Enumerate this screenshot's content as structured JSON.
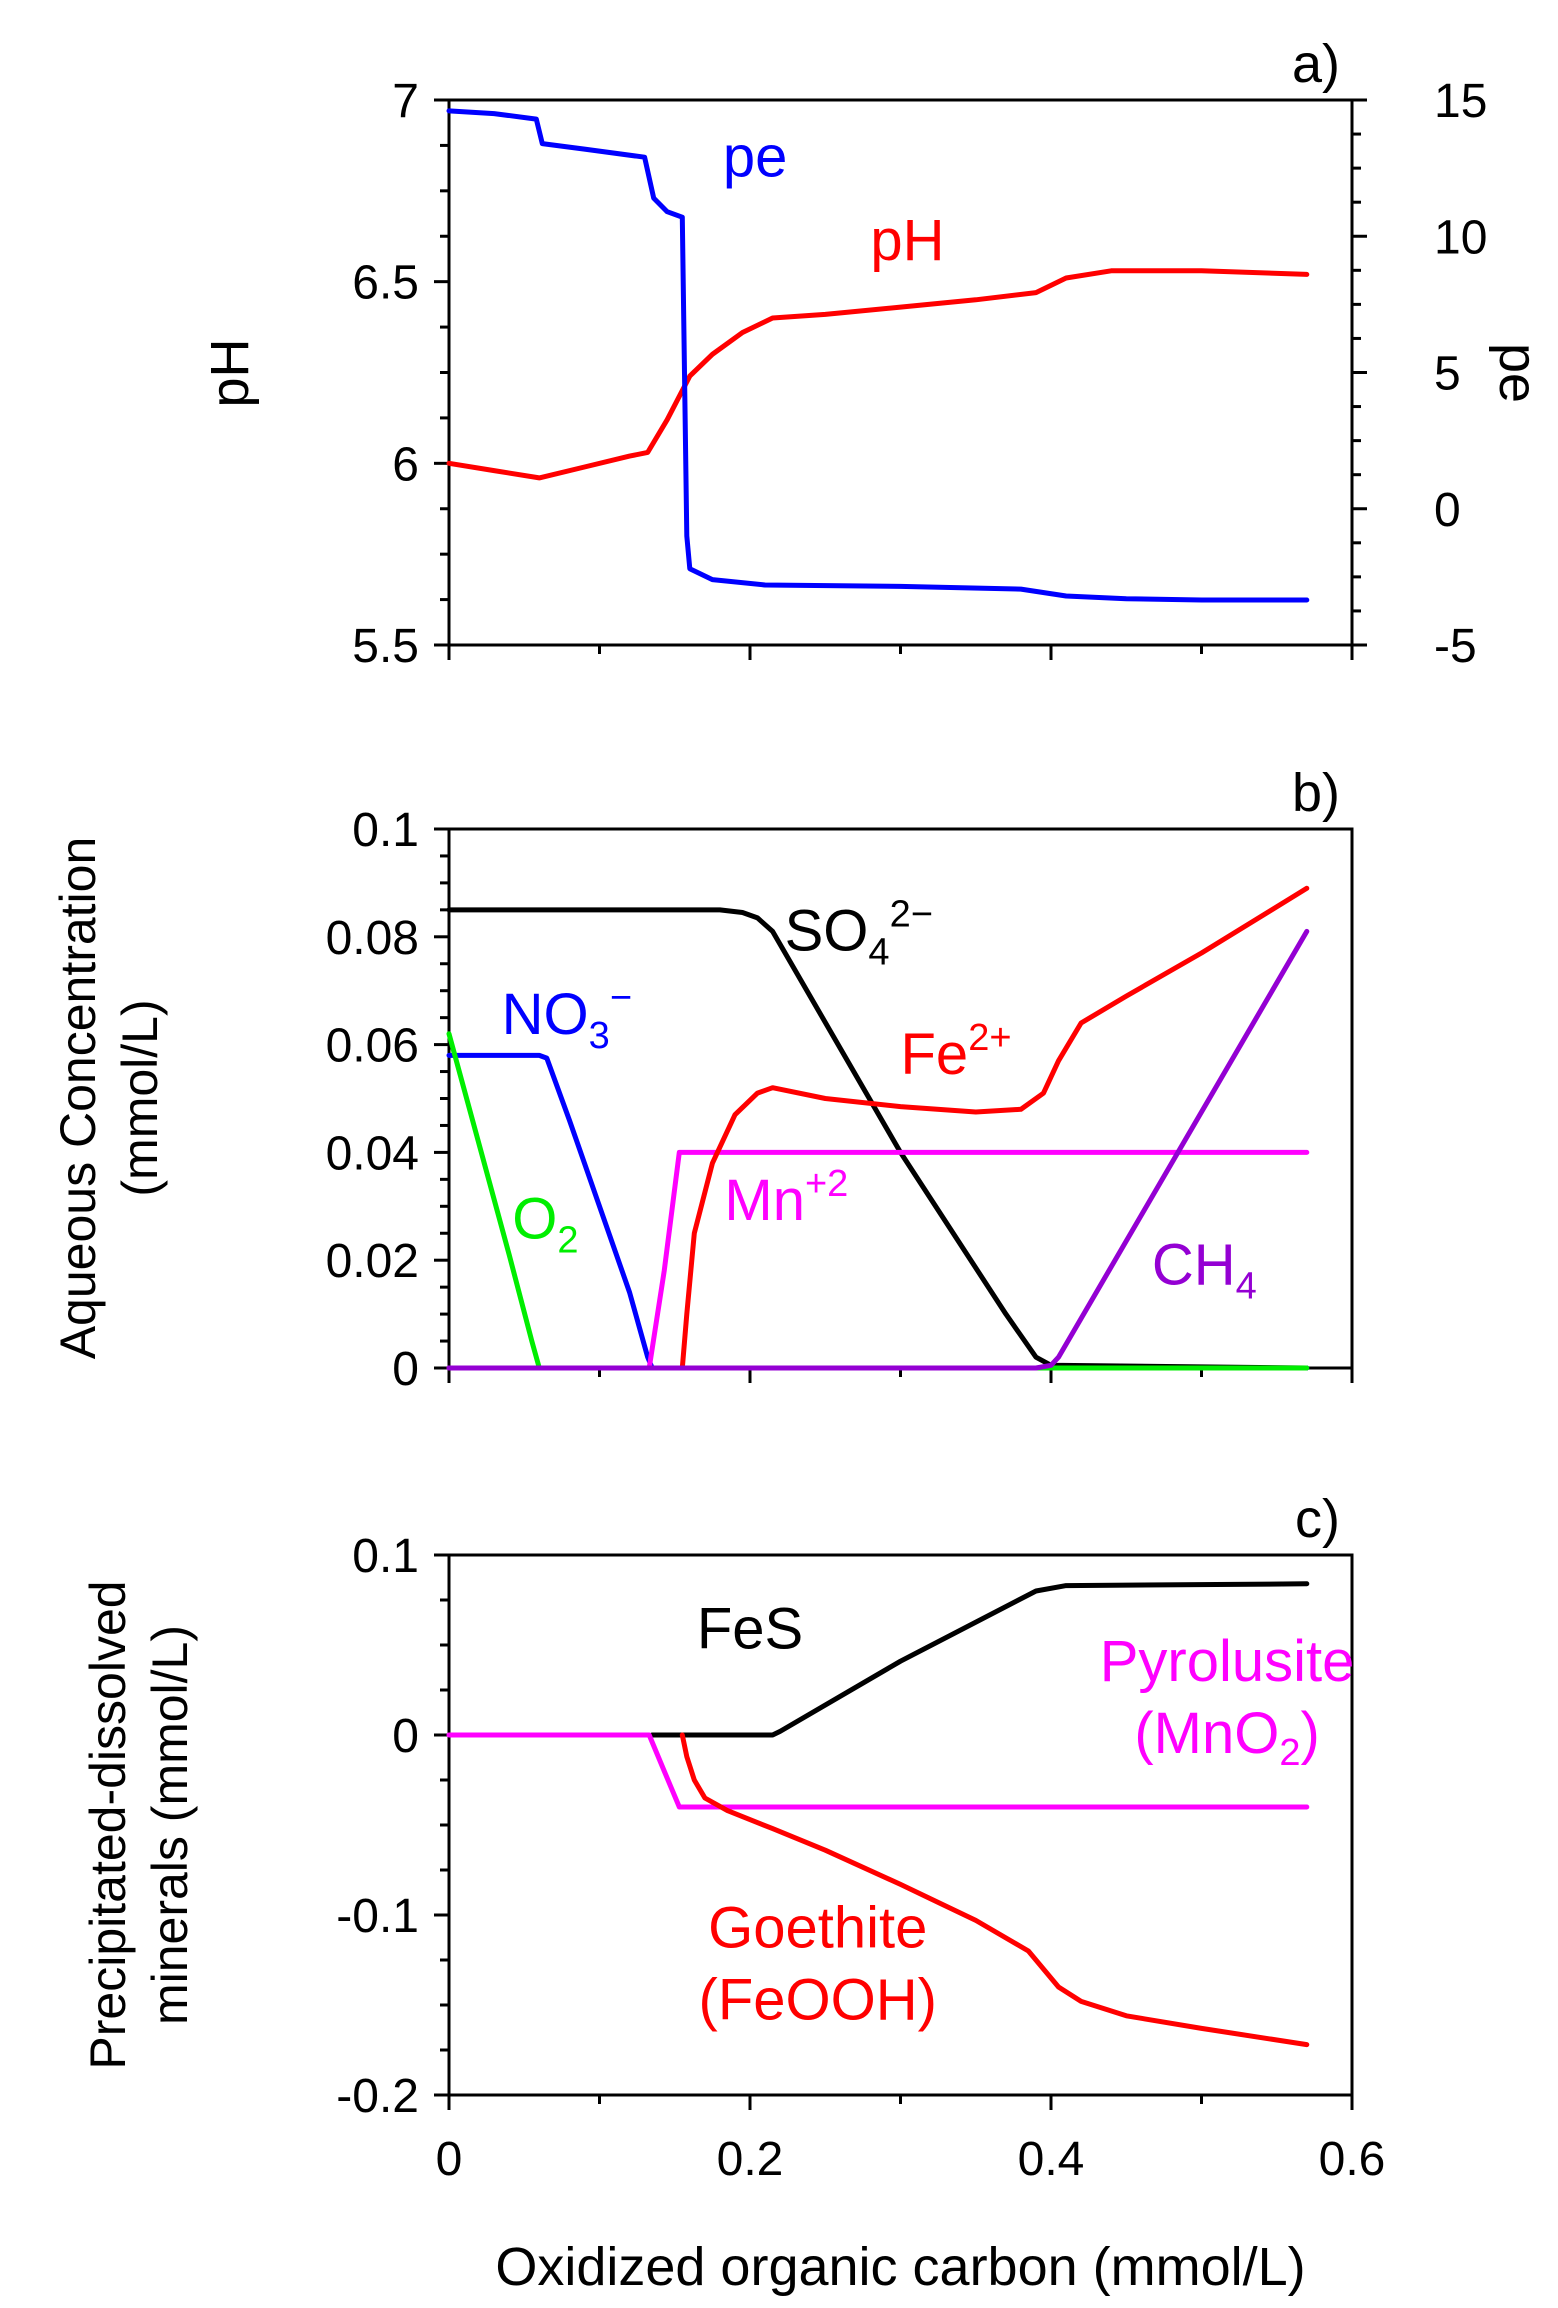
{
  "chart_data": [
    {
      "panel_label": "a)",
      "type": "line",
      "ylabel": "pH",
      "y2label": "pe",
      "xlim": [
        0,
        0.6
      ],
      "ylim": [
        5.5,
        7
      ],
      "y2lim": [
        -5,
        15
      ],
      "yticks": [
        5.5,
        6,
        6.5,
        7
      ],
      "ytick_labels": [
        "5.5",
        "6",
        "6.5",
        "7"
      ],
      "y2ticks": [
        -5,
        0,
        5,
        10,
        15
      ],
      "y2tick_labels": [
        "-5",
        "0",
        "5",
        "10",
        "15"
      ],
      "series": [
        {
          "name": "pH",
          "axis": "left",
          "color": "#ff0000",
          "label_pos": [
            0.28,
            6.56
          ],
          "points": [
            [
              0,
              6.0
            ],
            [
              0.03,
              5.98
            ],
            [
              0.06,
              5.96
            ],
            [
              0.09,
              5.99
            ],
            [
              0.12,
              6.02
            ],
            [
              0.132,
              6.03
            ],
            [
              0.145,
              6.12
            ],
            [
              0.16,
              6.24
            ],
            [
              0.175,
              6.3
            ],
            [
              0.195,
              6.36
            ],
            [
              0.215,
              6.4
            ],
            [
              0.25,
              6.41
            ],
            [
              0.3,
              6.43
            ],
            [
              0.35,
              6.45
            ],
            [
              0.39,
              6.47
            ],
            [
              0.41,
              6.51
            ],
            [
              0.44,
              6.53
            ],
            [
              0.5,
              6.53
            ],
            [
              0.57,
              6.52
            ]
          ]
        },
        {
          "name": "pe",
          "axis": "right",
          "color": "#0000ff",
          "label_pos": [
            0.182,
            12.2
          ],
          "points": [
            [
              0,
              14.6
            ],
            [
              0.03,
              14.5
            ],
            [
              0.058,
              14.3
            ],
            [
              0.062,
              13.4
            ],
            [
              0.09,
              13.2
            ],
            [
              0.13,
              12.9
            ],
            [
              0.136,
              11.4
            ],
            [
              0.145,
              10.9
            ],
            [
              0.155,
              10.7
            ],
            [
              0.158,
              -1.0
            ],
            [
              0.16,
              -2.2
            ],
            [
              0.175,
              -2.6
            ],
            [
              0.21,
              -2.8
            ],
            [
              0.3,
              -2.85
            ],
            [
              0.38,
              -2.95
            ],
            [
              0.41,
              -3.2
            ],
            [
              0.45,
              -3.3
            ],
            [
              0.5,
              -3.35
            ],
            [
              0.57,
              -3.35
            ]
          ]
        }
      ]
    },
    {
      "panel_label": "b)",
      "type": "line",
      "ylabel": "Aqueous Concentration (mmol/L)",
      "xlim": [
        0,
        0.6
      ],
      "ylim": [
        0,
        0.1
      ],
      "yticks": [
        0,
        0.02,
        0.04,
        0.06,
        0.08,
        0.1
      ],
      "ytick_labels": [
        "0",
        "0.02",
        "0.04",
        "0.06",
        "0.08",
        "0.1"
      ],
      "series": [
        {
          "name": "SO4^2−",
          "color": "#000000",
          "label_base": "SO",
          "label_sub": "4",
          "label_sup": "2−",
          "label_pos": [
            0.223,
            0.0775
          ],
          "points": [
            [
              0,
              0.085
            ],
            [
              0.18,
              0.085
            ],
            [
              0.195,
              0.0845
            ],
            [
              0.205,
              0.0835
            ],
            [
              0.215,
              0.081
            ],
            [
              0.3,
              0.04
            ],
            [
              0.37,
              0.01
            ],
            [
              0.39,
              0.002
            ],
            [
              0.4,
              0.0005
            ],
            [
              0.57,
              0.0
            ]
          ]
        },
        {
          "name": "NO3^−",
          "color": "#0000ff",
          "label_base": "NO",
          "label_sub": "3",
          "label_sup": "−",
          "label_pos": [
            0.035,
            0.062
          ],
          "points": [
            [
              0,
              0.058
            ],
            [
              0.06,
              0.058
            ],
            [
              0.065,
              0.0575
            ],
            [
              0.08,
              0.046
            ],
            [
              0.1,
              0.03
            ],
            [
              0.12,
              0.014
            ],
            [
              0.132,
              0.002
            ],
            [
              0.135,
              0.0
            ],
            [
              0.57,
              0.0
            ]
          ]
        },
        {
          "name": "O2",
          "color": "#00ee00",
          "label_base": "O",
          "label_sub": "2",
          "label_sup": "",
          "label_pos": [
            0.042,
            0.024
          ],
          "points": [
            [
              0,
              0.062
            ],
            [
              0.02,
              0.0415
            ],
            [
              0.04,
              0.021
            ],
            [
              0.055,
              0.005
            ],
            [
              0.06,
              0.0
            ],
            [
              0.57,
              0.0
            ]
          ]
        },
        {
          "name": "Mn^+2",
          "color": "#ff00ff",
          "label_base": "Mn",
          "label_sub": "",
          "label_sup": "+2",
          "label_pos": [
            0.183,
            0.0275
          ],
          "points": [
            [
              0,
              0.0
            ],
            [
              0.133,
              0.0
            ],
            [
              0.143,
              0.018
            ],
            [
              0.153,
              0.04
            ],
            [
              0.57,
              0.04
            ]
          ]
        },
        {
          "name": "Fe^2+",
          "color": "#ff0000",
          "label_base": "Fe",
          "label_sub": "",
          "label_sup": "2+",
          "label_pos": [
            0.3,
            0.0545
          ],
          "points": [
            [
              0.155,
              0.0
            ],
            [
              0.158,
              0.01
            ],
            [
              0.163,
              0.025
            ],
            [
              0.175,
              0.038
            ],
            [
              0.19,
              0.047
            ],
            [
              0.205,
              0.051
            ],
            [
              0.215,
              0.052
            ],
            [
              0.25,
              0.05
            ],
            [
              0.3,
              0.0485
            ],
            [
              0.35,
              0.0475
            ],
            [
              0.38,
              0.048
            ],
            [
              0.395,
              0.051
            ],
            [
              0.405,
              0.057
            ],
            [
              0.42,
              0.064
            ],
            [
              0.45,
              0.069
            ],
            [
              0.5,
              0.077
            ],
            [
              0.57,
              0.089
            ]
          ]
        },
        {
          "name": "CH4",
          "color": "#9400d3",
          "label_base": "CH",
          "label_sub": "4",
          "label_sup": "",
          "label_pos": [
            0.467,
            0.0155
          ],
          "points": [
            [
              0,
              0.0
            ],
            [
              0.39,
              0.0
            ],
            [
              0.4,
              0.0005
            ],
            [
              0.405,
              0.002
            ],
            [
              0.57,
              0.081
            ]
          ]
        }
      ]
    },
    {
      "panel_label": "c)",
      "type": "line",
      "ylabel": "Precipitated-dissolved minerals (mmol/L)",
      "xlabel": "Oxidized organic carbon (mmol/L)",
      "xlim": [
        0,
        0.6
      ],
      "ylim": [
        -0.2,
        0.1
      ],
      "xticks": [
        0,
        0.2,
        0.4,
        0.6
      ],
      "xtick_labels": [
        "0",
        "0.2",
        "0.4",
        "0.6"
      ],
      "yticks": [
        -0.2,
        -0.1,
        0,
        0.1
      ],
      "ytick_labels": [
        "-0.2",
        "-0.1",
        "0",
        "0.1"
      ],
      "series": [
        {
          "name": "FeS",
          "color": "#000000",
          "label_lines": [
            "FeS"
          ],
          "label_pos": [
            0.2,
            0.048
          ],
          "points": [
            [
              0.135,
              0.0
            ],
            [
              0.215,
              0.0
            ],
            [
              0.22,
              0.002
            ],
            [
              0.3,
              0.041
            ],
            [
              0.39,
              0.08
            ],
            [
              0.41,
              0.083
            ],
            [
              0.57,
              0.084
            ]
          ]
        },
        {
          "name": "Pyrolusite (MnO2)",
          "color": "#ff00ff",
          "label_lines": [
            "Pyrolusite",
            "(MnO2)"
          ],
          "label_pos": [
            0.517,
            0.03
          ],
          "points": [
            [
              0,
              0.0
            ],
            [
              0.133,
              0.0
            ],
            [
              0.143,
              -0.02
            ],
            [
              0.153,
              -0.04
            ],
            [
              0.57,
              -0.04
            ]
          ]
        },
        {
          "name": "Goethite (FeOOH)",
          "color": "#ff0000",
          "label_lines": [
            "Goethite",
            "(FeOOH)"
          ],
          "label_pos": [
            0.245,
            -0.118
          ],
          "points": [
            [
              0.155,
              0.0
            ],
            [
              0.158,
              -0.012
            ],
            [
              0.163,
              -0.025
            ],
            [
              0.17,
              -0.035
            ],
            [
              0.185,
              -0.042
            ],
            [
              0.215,
              -0.052
            ],
            [
              0.25,
              -0.064
            ],
            [
              0.3,
              -0.083
            ],
            [
              0.35,
              -0.103
            ],
            [
              0.385,
              -0.12
            ],
            [
              0.405,
              -0.14
            ],
            [
              0.42,
              -0.148
            ],
            [
              0.45,
              -0.156
            ],
            [
              0.5,
              -0.163
            ],
            [
              0.57,
              -0.172
            ]
          ]
        }
      ]
    }
  ]
}
